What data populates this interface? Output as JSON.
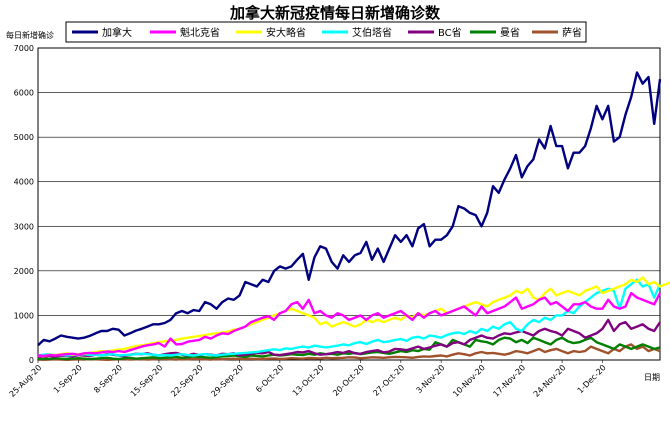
{
  "chart_data": {
    "type": "line",
    "title": "加拿大新冠疫情每日新增确诊数",
    "ylabel": "每日新增确诊",
    "xlabel": "日期",
    "ylim": [
      0,
      7000
    ],
    "yticks": [
      0,
      1000,
      2000,
      3000,
      4000,
      5000,
      6000,
      7000
    ],
    "x_start": "25-Aug-20",
    "x_end": "6-Dec-20",
    "x_tick_labels": [
      "25-Aug-20",
      "1-Sep-20",
      "8-Sep-20",
      "15-Sep-20",
      "22-Sep-20",
      "29-Sep-20",
      "6-Oct-20",
      "13-Oct-20",
      "20-Oct-20",
      "27-Oct-20",
      "3-Nov-20",
      "10-Nov-20",
      "17-Nov-20",
      "24-Nov-20",
      "1-Dec-20"
    ],
    "grid": "horizontal",
    "legend": "top",
    "series": [
      {
        "name": "加拿大",
        "color": "#000080",
        "values": [
          330,
          450,
          420,
          480,
          550,
          520,
          500,
          480,
          500,
          540,
          600,
          650,
          650,
          700,
          680,
          550,
          600,
          660,
          700,
          750,
          800,
          800,
          830,
          900,
          1050,
          1100,
          1050,
          1120,
          1100,
          1300,
          1250,
          1150,
          1300,
          1380,
          1350,
          1450,
          1750,
          1700,
          1650,
          1800,
          1750,
          2000,
          2100,
          2050,
          2100,
          2250,
          2380,
          1800,
          2300,
          2550,
          2500,
          2200,
          2050,
          2350,
          2200,
          2350,
          2400,
          2650,
          2250,
          2500,
          2200,
          2500,
          2800,
          2650,
          2800,
          2550,
          2950,
          3050,
          2550,
          2700,
          2700,
          2800,
          3000,
          3450,
          3400,
          3300,
          3250,
          3000,
          3300,
          3900,
          3750,
          4050,
          4300,
          4600,
          4100,
          4350,
          4500,
          4950,
          4750,
          5250,
          4800,
          4800,
          4300,
          4650,
          4650,
          4800,
          5200,
          5700,
          5400,
          5700,
          4900,
          5000,
          5500,
          5900,
          6450,
          6200,
          6350,
          5300,
          6300
        ]
      },
      {
        "name": "魁北克省",
        "color": "#ff00ff",
        "values": [
          100,
          90,
          110,
          100,
          120,
          130,
          140,
          120,
          150,
          160,
          150,
          170,
          190,
          180,
          200,
          180,
          220,
          260,
          300,
          330,
          350,
          380,
          300,
          480,
          350,
          360,
          410,
          430,
          450,
          520,
          480,
          550,
          600,
          580,
          650,
          700,
          750,
          850,
          900,
          950,
          980,
          900,
          1050,
          1100,
          1250,
          1300,
          1150,
          1350,
          1050,
          1100,
          1000,
          950,
          1050,
          1000,
          900,
          950,
          1000,
          900,
          1000,
          1050,
          950,
          1000,
          1050,
          1100,
          1000,
          900,
          1050,
          950,
          1050,
          1100,
          1000,
          1050,
          1100,
          1150,
          1200,
          1100,
          1000,
          1200,
          1050,
          1100,
          1150,
          1200,
          1300,
          1400,
          1150,
          1200,
          1250,
          1350,
          1400,
          1250,
          1300,
          1200,
          1100,
          1250,
          1250,
          1300,
          1200,
          1150,
          1150,
          1350,
          1200,
          1150,
          1200,
          1500,
          1400,
          1350,
          1300,
          1250,
          1500
        ]
      },
      {
        "name": "安大略省",
        "color": "#ffff00",
        "values": [
          100,
          80,
          120,
          110,
          130,
          150,
          120,
          130,
          140,
          160,
          180,
          200,
          190,
          220,
          230,
          250,
          280,
          310,
          330,
          350,
          380,
          400,
          420,
          440,
          450,
          480,
          500,
          520,
          540,
          560,
          580,
          600,
          620,
          640,
          680,
          700,
          750,
          800,
          850,
          900,
          950,
          1000,
          1050,
          1100,
          1150,
          1100,
          1050,
          1000,
          950,
          800,
          850,
          750,
          800,
          850,
          800,
          750,
          800,
          900,
          850,
          900,
          850,
          900,
          950,
          900,
          1000,
          950,
          1050,
          1000,
          1050,
          1100,
          1150,
          1050,
          1100,
          1150,
          1200,
          1250,
          1300,
          1250,
          1200,
          1300,
          1350,
          1400,
          1450,
          1550,
          1500,
          1600,
          1400,
          1350,
          1500,
          1600,
          1450,
          1500,
          1550,
          1500,
          1450,
          1550,
          1600,
          1650,
          1500,
          1550,
          1600,
          1650,
          1700,
          1800,
          1750,
          1850,
          1700,
          1750,
          1650,
          1700,
          1750
        ]
      },
      {
        "name": "艾伯塔省",
        "color": "#00ffff",
        "values": [
          100,
          120,
          130,
          110,
          120,
          100,
          110,
          120,
          130,
          110,
          120,
          100,
          120,
          130,
          100,
          110,
          120,
          130,
          140,
          130,
          120,
          100,
          110,
          100,
          120,
          130,
          110,
          100,
          120,
          130,
          110,
          100,
          120,
          130,
          140,
          150,
          160,
          170,
          180,
          200,
          220,
          240,
          220,
          260,
          250,
          280,
          300,
          280,
          320,
          300,
          280,
          300,
          320,
          350,
          330,
          380,
          400,
          360,
          410,
          450,
          400,
          420,
          450,
          470,
          430,
          500,
          520,
          480,
          550,
          530,
          500,
          560,
          600,
          620,
          580,
          650,
          600,
          700,
          650,
          750,
          700,
          800,
          850,
          700,
          650,
          800,
          900,
          850,
          950,
          900,
          1000,
          1000,
          1100,
          1050,
          1200,
          1300,
          1400,
          1500,
          1550,
          1600,
          1550,
          1150,
          1600,
          1700,
          1800,
          1650,
          1700,
          1400,
          1700
        ]
      },
      {
        "name": "BC省",
        "color": "#800080",
        "values": [
          80,
          70,
          90,
          80,
          100,
          90,
          80,
          110,
          100,
          90,
          120,
          100,
          130,
          120,
          100,
          90,
          120,
          140,
          130,
          150,
          120,
          100,
          130,
          150,
          160,
          120,
          100,
          140,
          110,
          130,
          120,
          100,
          140,
          130,
          150,
          100,
          120,
          140,
          160,
          150,
          180,
          120,
          110,
          130,
          150,
          180,
          170,
          200,
          150,
          120,
          130,
          150,
          180,
          160,
          200,
          150,
          140,
          180,
          200,
          220,
          170,
          190,
          250,
          240,
          220,
          260,
          300,
          250,
          280,
          320,
          350,
          300,
          380,
          400,
          350,
          450,
          500,
          550,
          500,
          480,
          550,
          600,
          580,
          620,
          650,
          600,
          550,
          650,
          700,
          650,
          620,
          550,
          700,
          650,
          600,
          500,
          550,
          600,
          700,
          900,
          650,
          800,
          850,
          700,
          750,
          800,
          700,
          650,
          850
        ]
      },
      {
        "name": "曼省",
        "color": "#008000",
        "values": [
          20,
          30,
          20,
          40,
          30,
          20,
          30,
          40,
          30,
          20,
          30,
          40,
          50,
          30,
          20,
          40,
          50,
          30,
          40,
          50,
          60,
          40,
          50,
          60,
          70,
          50,
          60,
          80,
          70,
          60,
          50,
          70,
          80,
          90,
          100,
          80,
          70,
          100,
          90,
          80,
          100,
          120,
          100,
          110,
          130,
          120,
          110,
          140,
          120,
          150,
          130,
          140,
          120,
          150,
          140,
          160,
          130,
          150,
          170,
          180,
          160,
          140,
          170,
          200,
          180,
          220,
          200,
          250,
          230,
          400,
          350,
          300,
          450,
          400,
          350,
          300,
          450,
          420,
          400,
          350,
          450,
          500,
          480,
          400,
          450,
          380,
          500,
          450,
          400,
          350,
          450,
          500,
          420,
          380,
          400,
          450,
          500,
          400,
          350,
          300,
          250,
          350,
          300,
          250,
          300,
          350,
          300,
          250,
          280
        ]
      },
      {
        "name": "萨省",
        "color": "#a0522d",
        "values": [
          10,
          5,
          10,
          15,
          10,
          5,
          10,
          15,
          10,
          20,
          15,
          10,
          5,
          10,
          15,
          20,
          10,
          15,
          20,
          10,
          15,
          20,
          25,
          15,
          10,
          20,
          15,
          25,
          20,
          15,
          10,
          20,
          15,
          25,
          30,
          20,
          25,
          30,
          20,
          25,
          30,
          35,
          25,
          30,
          40,
          35,
          30,
          45,
          40,
          35,
          50,
          40,
          45,
          50,
          60,
          55,
          40,
          50,
          60,
          55,
          50,
          60,
          70,
          65,
          60,
          50,
          70,
          80,
          75,
          90,
          100,
          80,
          120,
          150,
          130,
          100,
          150,
          180,
          150,
          160,
          140,
          120,
          150,
          200,
          180,
          150,
          200,
          250,
          180,
          220,
          250,
          200,
          150,
          200,
          180,
          200,
          300,
          250,
          200,
          150,
          250,
          200,
          300,
          350,
          250,
          300,
          200,
          250,
          200
        ]
      }
    ]
  }
}
